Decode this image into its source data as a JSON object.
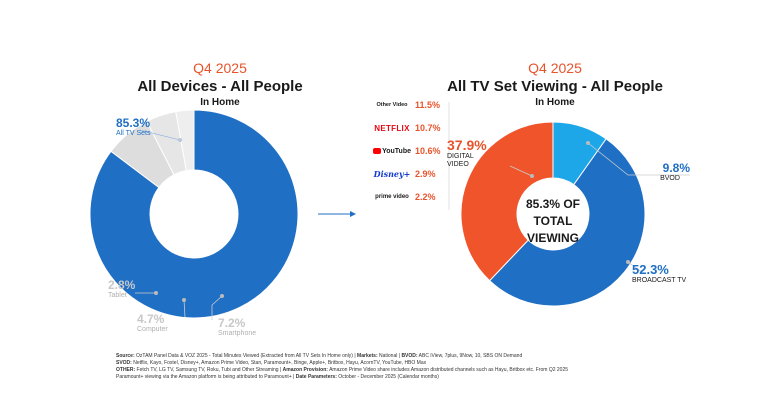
{
  "left": {
    "quarter": "Q4 2025",
    "title": "All Devices - All People",
    "subtitle": "In Home"
  },
  "right": {
    "quarter": "Q4 2025",
    "title": "All TV Set Viewing - All People",
    "subtitle": "In Home",
    "center_text": [
      "85.3% OF",
      "TOTAL",
      "VIEWING"
    ]
  },
  "chart_data": [
    {
      "type": "pie",
      "title": "All Devices - All People",
      "slices": [
        {
          "label": "All TV Sets",
          "value": 85.3,
          "value_text": "85.3%",
          "color": "#1f6fc5"
        },
        {
          "label": "Smartphone",
          "value": 7.2,
          "value_text": "7.2%",
          "color": "#dddddd"
        },
        {
          "label": "Computer",
          "value": 4.7,
          "value_text": "4.7%",
          "color": "#e6e6e6"
        },
        {
          "label": "Tablet",
          "value": 2.8,
          "value_text": "2.8%",
          "color": "#eeeeee"
        }
      ]
    },
    {
      "type": "pie",
      "title": "All TV Set Viewing - All People",
      "slices": [
        {
          "label": "BVOD",
          "value": 9.8,
          "value_text": "9.8%",
          "color": "#1ea7e8"
        },
        {
          "label": "BROADCAST TV",
          "value": 52.3,
          "value_text": "52.3%",
          "color": "#1f6fc5"
        },
        {
          "label": "DIGITAL VIDEO",
          "value": 37.9,
          "value_text": "37.9%",
          "color": "#f0542a"
        }
      ],
      "digital_video_breakdown": [
        {
          "label": "Other Video",
          "value": 11.5,
          "value_text": "11.5%"
        },
        {
          "label": "NETFLIX",
          "value": 10.7,
          "value_text": "10.7%"
        },
        {
          "label": "YouTube",
          "value": 10.6,
          "value_text": "10.6%"
        },
        {
          "label": "Disney+",
          "value": 2.9,
          "value_text": "2.9%"
        },
        {
          "label": "prime video",
          "value": 2.2,
          "value_text": "2.2%"
        }
      ]
    }
  ],
  "footnote": {
    "l1a": "Source:",
    "l1b": " OzTAM Panel Data & VOZ 2025 - Total Minutes Viewed (Extracted from All TV Sets In Home only) | ",
    "l1c": "Markets:",
    "l1d": " National | ",
    "l1e": "BVOD:",
    "l1f": " ABC iView, 7plus, 9Now, 10, SBS ON Demand",
    "l2a": "SVOD:",
    "l2b": " Netflix, Kayo, Foxtel, Disney+, Amazon Prime Video, Stan, Paramount+, Binge, Apple+, Britbox, Hayu, AcornTV, YouTube, HBO Max",
    "l3a": "OTHER:",
    "l3b": " Fetch TV, LG TV, Samsung TV, Roku, Tubi and Other Streaming | ",
    "l3c": "Amazon Provision:",
    "l3d": " Amazon Prime Video share includes Amazon distributed channels such as Hayu, Britbox etc. From Q2 2025",
    "l4a": "Paramount+ viewing via the Amazon platform is being attributed to Paramount+ | ",
    "l4b": "Date Parameters:",
    "l4c": " October - December 2025 (Calendar months)"
  }
}
